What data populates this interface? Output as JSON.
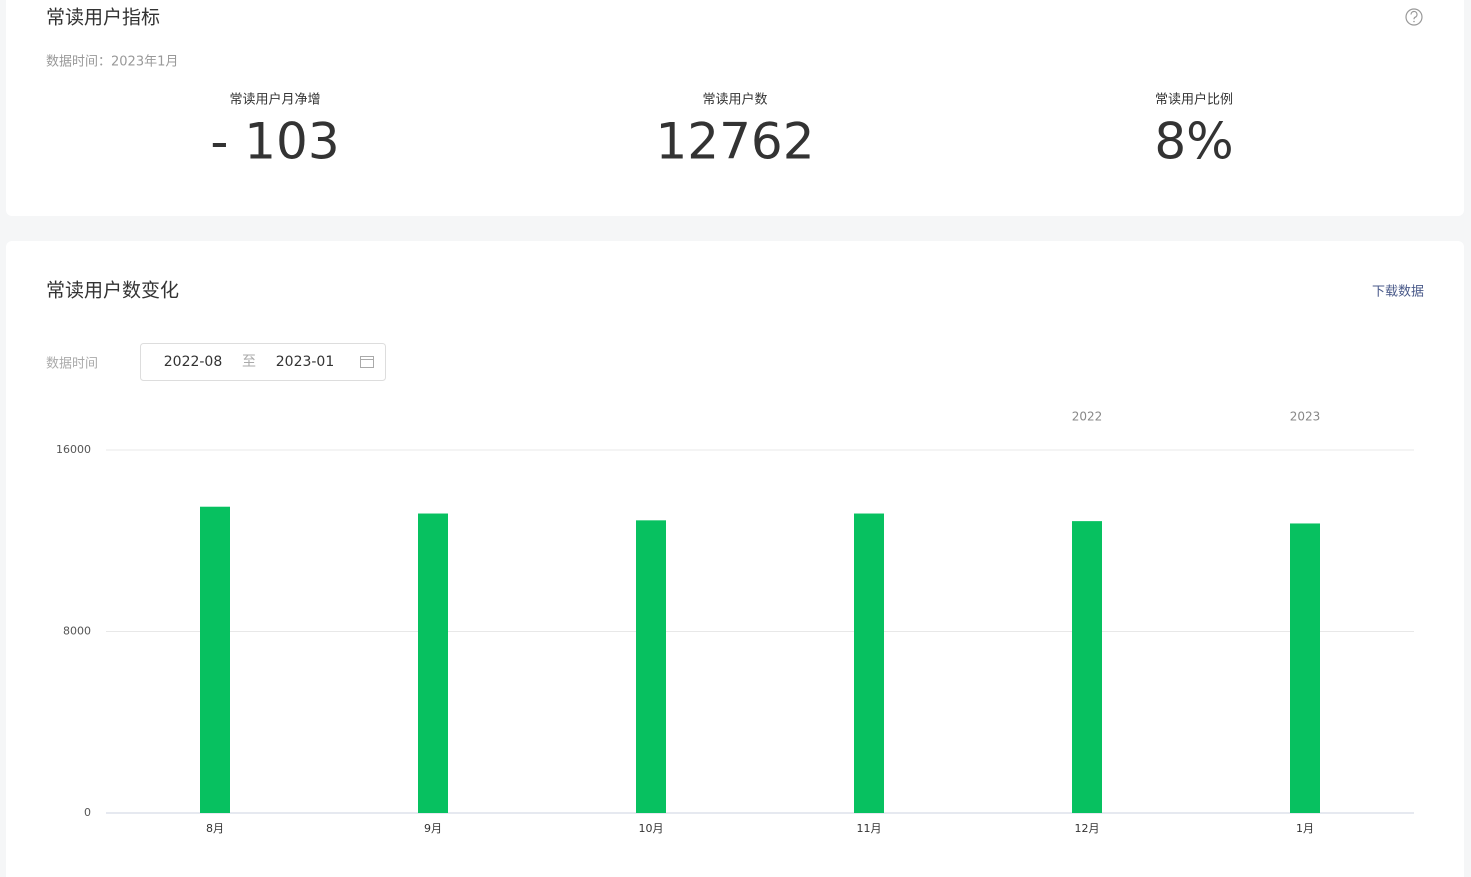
{
  "overview": {
    "title": "常读用户指标",
    "data_time": "数据时间：2023年1月",
    "metrics": [
      {
        "label": "常读用户月净增",
        "value": "- 103"
      },
      {
        "label": "常读用户数",
        "value": "12762"
      },
      {
        "label": "常读用户比例",
        "value": "8%"
      }
    ]
  },
  "trend": {
    "title": "常读用户数变化",
    "download": "下载数据",
    "filter_label": "数据时间",
    "date_start": "2022-08",
    "date_separator": "至",
    "date_end": "2023-01"
  },
  "chart_data": {
    "type": "bar",
    "categories": [
      "8月",
      "9月",
      "10月",
      "11月",
      "12月",
      "1月"
    ],
    "years": [
      null,
      null,
      null,
      null,
      "2022",
      "2023"
    ],
    "values": [
      13500,
      13200,
      12900,
      13200,
      12865,
      12762
    ],
    "color": "#07c160",
    "ylim": [
      0,
      16000
    ],
    "yticks": [
      0,
      8000,
      16000
    ],
    "grid": true
  }
}
